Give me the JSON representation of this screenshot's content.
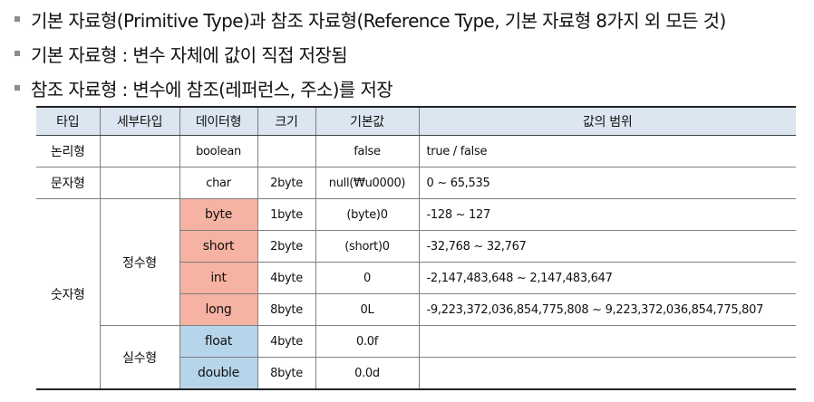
{
  "bullets": [
    "기본 자료형(Primitive Type)과 참조 자료형(Reference Type, 기본 자료형 8가지 외 모든 것)",
    "기본 자료형 : 변수 자체에 값이 직접 저장됨",
    "참조 자료형 : 변수에 참조(레퍼런스, 주소)를 저장"
  ],
  "table": {
    "headers": [
      "타입",
      "세부타입",
      "데이터형",
      "크기",
      "기본값",
      "값의 범위"
    ],
    "rows": [
      {
        "type": "논리형",
        "subtype": "",
        "datatype": "boolean",
        "size": "",
        "default": "false",
        "range": "true / false"
      },
      {
        "type": "문자형",
        "subtype": "",
        "datatype": "char",
        "size": "2byte",
        "default": "null(₩u0000)",
        "range": "0 ~ 65,535"
      },
      {
        "type": "숫자형",
        "subtype": "정수형",
        "datatype": "byte",
        "size": "1byte",
        "default": "(byte)0",
        "range": "-128 ~ 127"
      },
      {
        "datatype": "short",
        "size": "2byte",
        "default": "(short)0",
        "range": "-32,768 ~ 32,767"
      },
      {
        "datatype": "int",
        "size": "4byte",
        "default": "0",
        "range": "-2,147,483,648 ~ 2,147,483,647"
      },
      {
        "datatype": "long",
        "size": "8byte",
        "default": "0L",
        "range": "-9,223,372,036,854,775,808 ~ 9,223,372,036,854,775,807"
      },
      {
        "subtype": "실수형",
        "datatype": "float",
        "size": "4byte",
        "default": "0.0f",
        "range": ""
      },
      {
        "datatype": "double",
        "size": "8byte",
        "default": "0.0d",
        "range": ""
      }
    ]
  },
  "colors": {
    "header_bg": "#dbe6f0",
    "integer_type_bg": "#f6b2a2",
    "float_type_bg": "#b7d5ea",
    "bullet_marker": "#8c8c8c"
  }
}
